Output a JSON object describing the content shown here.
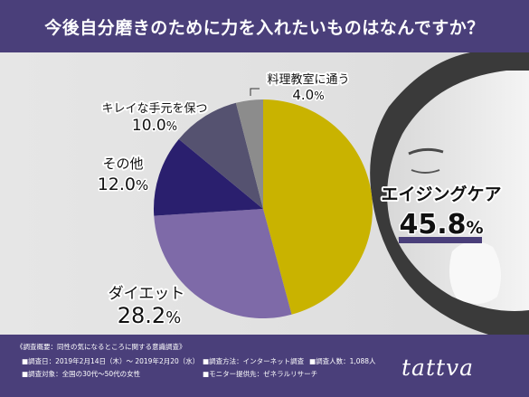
{
  "title": "今後自分磨きのために力を入れたいものはなんですか？",
  "chart_data": {
    "type": "pie",
    "slices": [
      {
        "label": "エイジングケア",
        "value": 45.8,
        "color": "#c9b300"
      },
      {
        "label": "ダイエット",
        "value": 28.2,
        "color": "#7e6aa8"
      },
      {
        "label": "その他",
        "value": 12.0,
        "color": "#2a1f6e"
      },
      {
        "label": "キレイな手元を保つ",
        "value": 10.0,
        "color": "#555270"
      },
      {
        "label": "料理教室に通う",
        "value": 4.0,
        "color": "#8c8c8c"
      }
    ],
    "value_labels": [
      {
        "main": "45.8",
        "unit": "%"
      },
      {
        "main": "28.2",
        "unit": "%"
      },
      {
        "main": "12.0",
        "unit": "%"
      },
      {
        "main": "10.0",
        "unit": "%"
      },
      {
        "main": "4.0",
        "unit": "%"
      }
    ],
    "highlight_color": "#4a3f7a"
  },
  "footer": {
    "heading": "《調査概要：同性の気になるところに関する意識調査》",
    "period": "■調査日：2019年2月14日（木）～ 2019年2月20（水）",
    "method": "■調査方法：インターネット調査",
    "count": "■調査人数：1,088人",
    "target": "■調査対象：全国の30代～50代の女性",
    "provider": "■モニター提供先：ゼネラルリサーチ",
    "logo": "tattva"
  }
}
